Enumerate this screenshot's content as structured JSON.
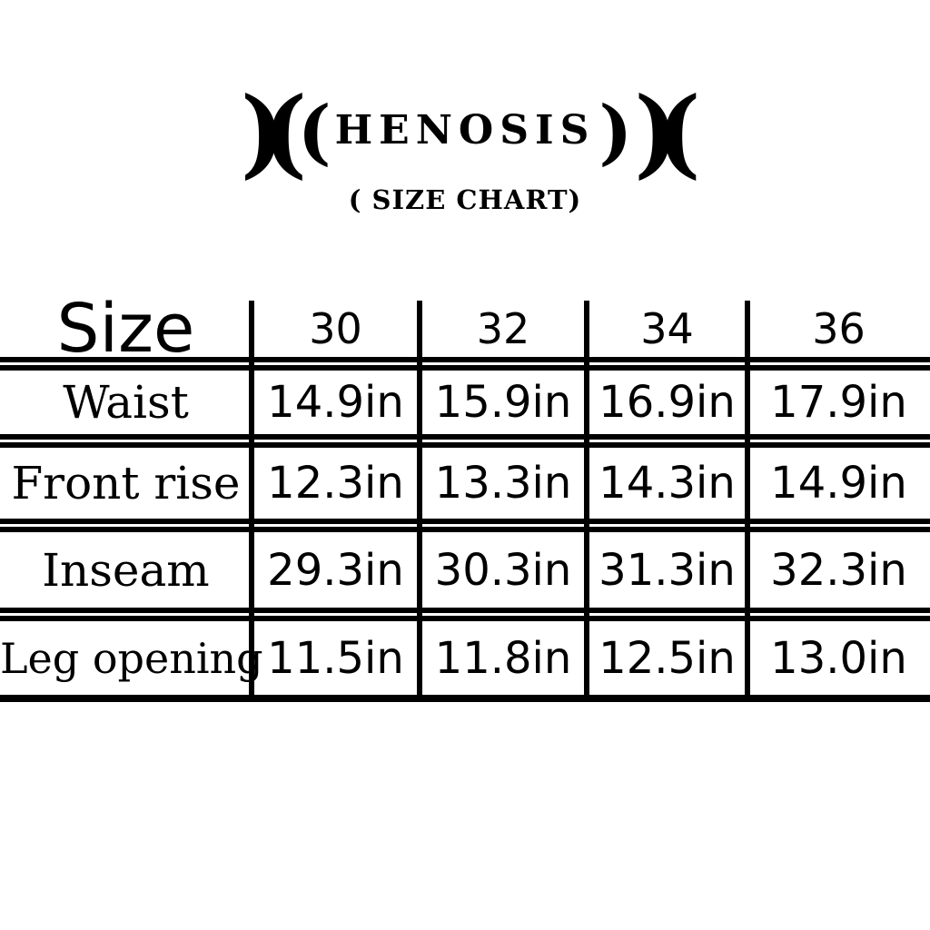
{
  "page": {
    "background": "#ffffff",
    "text_color": "#000000",
    "line_color": "#000000"
  },
  "logo": {
    "brand": "HENOSIS",
    "outer_left": ")(",
    "inner_left": "(",
    "word": "HENOSIS",
    "inner_right": ")",
    "outer_right": ")(",
    "subtitle": "( SIZE CHART)"
  },
  "chart_data": {
    "type": "table",
    "title": "HENOSIS ( SIZE CHART)",
    "unit": "inches",
    "columns": [
      "Size",
      "30",
      "32",
      "34",
      "36"
    ],
    "rows": [
      [
        "Waist",
        "14.9in",
        "15.9in",
        "16.9in",
        "17.9in"
      ],
      [
        "Front rise",
        "12.3in",
        "13.3in",
        "14.3in",
        "14.9in"
      ],
      [
        "Inseam",
        "29.3in",
        "30.3in",
        "31.3in",
        "32.3in"
      ],
      [
        "Leg opening",
        "11.5in",
        "11.8in",
        "12.5in",
        "13.0in"
      ]
    ]
  }
}
